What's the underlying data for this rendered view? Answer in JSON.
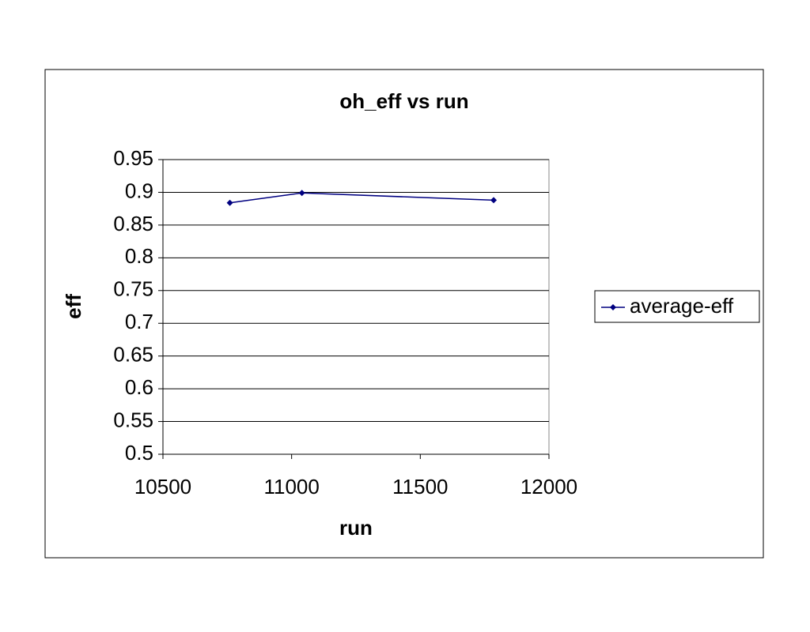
{
  "chart_data": {
    "type": "line",
    "title": "oh_eff vs run",
    "x_label": "run",
    "y_label": "eff",
    "x": [
      10760,
      11040,
      11785
    ],
    "series": [
      {
        "name": "average-eff",
        "color": "#000080",
        "values": [
          0.884,
          0.899,
          0.888
        ]
      }
    ],
    "xlim": [
      10500,
      12000
    ],
    "xticks": [
      10500,
      11000,
      11500,
      12000
    ],
    "ylim": [
      0.5,
      0.95
    ],
    "yticks": [
      0.5,
      0.55,
      0.6,
      0.65,
      0.7,
      0.75,
      0.8,
      0.85,
      0.9,
      0.95
    ],
    "grid": true,
    "legend": "right"
  }
}
